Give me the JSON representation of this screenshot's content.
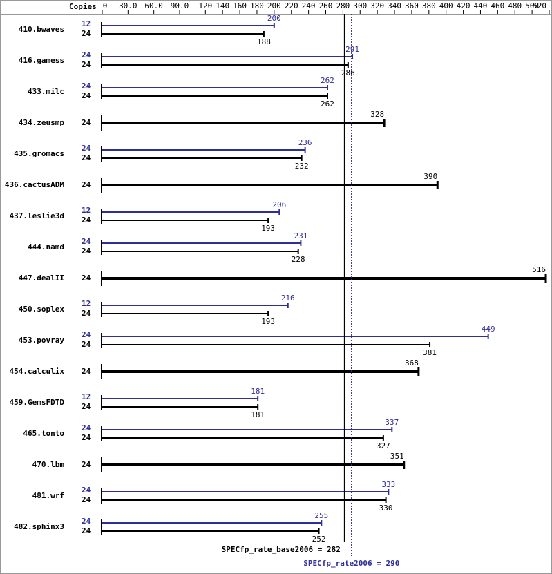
{
  "chart_data": {
    "type": "spec-bar",
    "copies_label": "Copies",
    "categories": [
      "410.bwaves",
      "416.gamess",
      "433.milc",
      "434.zeusmp",
      "435.gromacs",
      "436.cactusADM",
      "437.leslie3d",
      "444.namd",
      "447.dealII",
      "450.soplex",
      "453.povray",
      "454.calculix",
      "459.GemsFDTD",
      "465.tonto",
      "470.lbm",
      "481.wrf",
      "482.sphinx3"
    ],
    "series": [
      {
        "color": "#2e2e99",
        "copies": [
          12,
          24,
          24,
          null,
          24,
          null,
          12,
          24,
          null,
          12,
          24,
          null,
          12,
          24,
          null,
          24,
          24
        ],
        "values": [
          200,
          291,
          262,
          null,
          236,
          null,
          206,
          231,
          null,
          216,
          449,
          null,
          181,
          337,
          null,
          333,
          255
        ]
      },
      {
        "color": "#000000",
        "copies": [
          24,
          24,
          24,
          24,
          24,
          24,
          24,
          24,
          24,
          24,
          24,
          24,
          24,
          24,
          24,
          24,
          24
        ],
        "values": [
          188,
          286,
          262,
          328,
          232,
          390,
          193,
          228,
          516,
          193,
          381,
          368,
          181,
          327,
          351,
          330,
          252
        ]
      }
    ],
    "xlim": [
      0,
      520
    ],
    "xticks": [
      0,
      {
        "value": 30,
        "label": "30.0"
      },
      {
        "value": 60,
        "label": "60.0"
      },
      {
        "value": 90,
        "label": "90.0"
      },
      120,
      140,
      160,
      180,
      200,
      220,
      240,
      260,
      280,
      300,
      320,
      340,
      360,
      380,
      400,
      420,
      440,
      460,
      480,
      500,
      520
    ],
    "reference_lines": [
      {
        "label": "SPECfp_rate_base2006 = 282",
        "value": 282,
        "color": "#000000",
        "dashed": false
      },
      {
        "label": "SPECfp_rate2006 = 290",
        "value": 290,
        "color": "#2e2e99",
        "dashed": true
      }
    ]
  }
}
